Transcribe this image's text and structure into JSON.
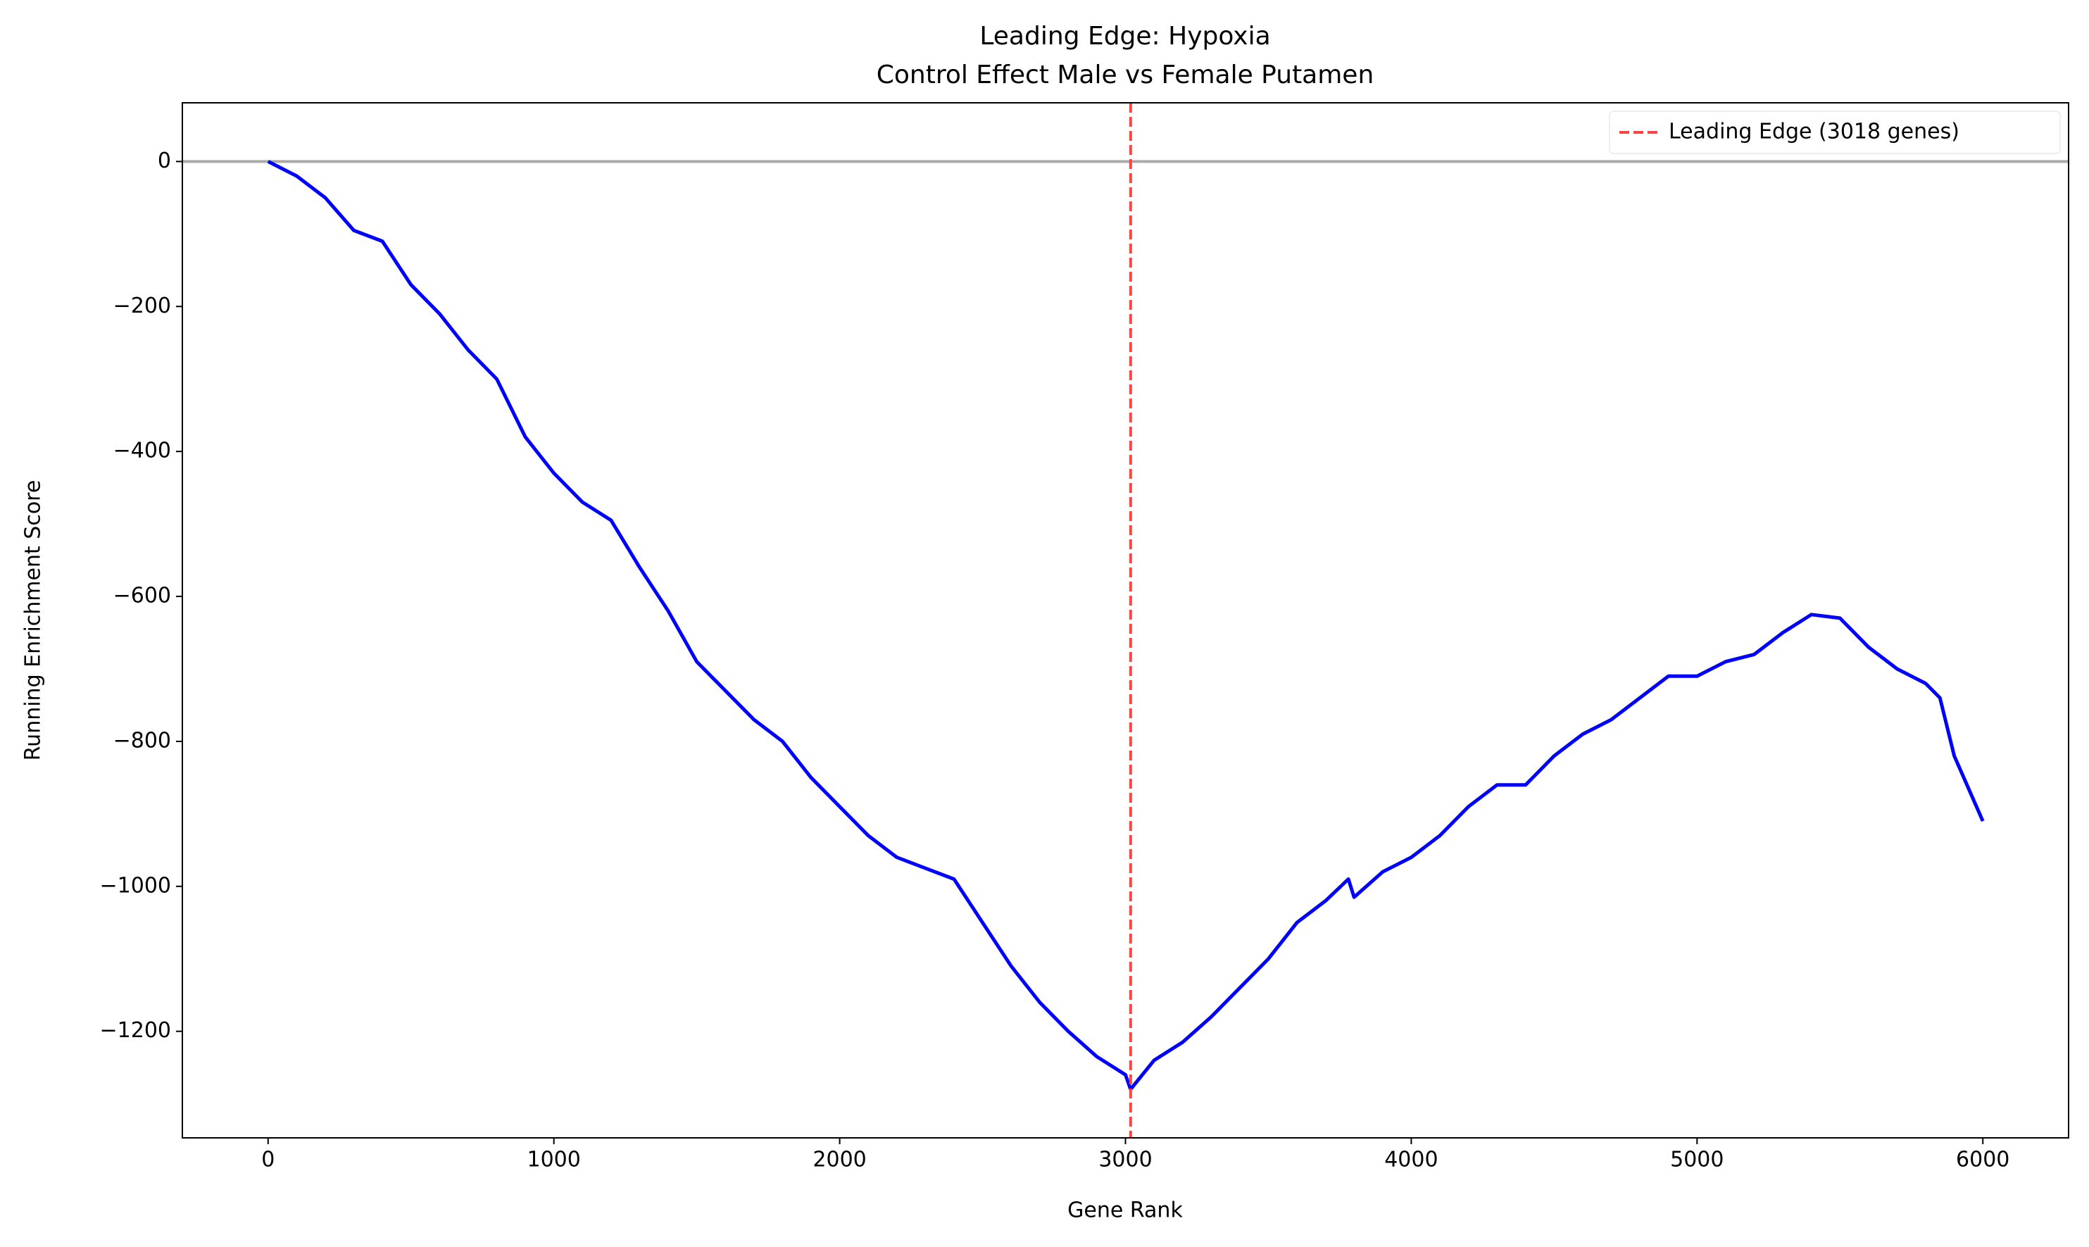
{
  "chart_data": {
    "type": "line",
    "title": "Leading Edge: Hypoxia",
    "subtitle": "Control Effect Male vs Female Putamen",
    "x_label": "Gene Rank",
    "y_label": "Running Enrichment Score",
    "x": [
      0,
      100,
      200,
      300,
      400,
      500,
      600,
      700,
      800,
      900,
      1000,
      1100,
      1200,
      1300,
      1400,
      1500,
      1600,
      1700,
      1800,
      1900,
      2000,
      2100,
      2200,
      2300,
      2400,
      2500,
      2600,
      2700,
      2800,
      2900,
      3000,
      3018,
      3100,
      3200,
      3300,
      3400,
      3500,
      3600,
      3700,
      3780,
      3800,
      3900,
      4000,
      4100,
      4200,
      4300,
      4400,
      4500,
      4600,
      4700,
      4800,
      4900,
      5000,
      5100,
      5200,
      5300,
      5400,
      5500,
      5600,
      5700,
      5800,
      5850,
      5900,
      6000
    ],
    "values": [
      0,
      -20,
      -50,
      -95,
      -110,
      -170,
      -210,
      -260,
      -300,
      -380,
      -430,
      -470,
      -495,
      -560,
      -620,
      -690,
      -730,
      -770,
      -800,
      -850,
      -890,
      -930,
      -960,
      -975,
      -990,
      -1050,
      -1110,
      -1160,
      -1200,
      -1235,
      -1260,
      -1280,
      -1240,
      -1215,
      -1180,
      -1140,
      -1100,
      -1050,
      -1020,
      -990,
      -1015,
      -980,
      -960,
      -930,
      -890,
      -860,
      -860,
      -820,
      -790,
      -770,
      -740,
      -710,
      -710,
      -690,
      -680,
      -650,
      -625,
      -630,
      -670,
      -700,
      -720,
      -740,
      -820,
      -910
    ],
    "color": "#0000ff",
    "hline": 0,
    "hline_color": "#aaaaaa",
    "vline": {
      "value": 3018,
      "label": "Leading Edge (3018 genes)",
      "color": "#ff4444"
    },
    "legend": "upper right",
    "grid": false,
    "xlim": [
      -300,
      6300
    ],
    "ylim": [
      -1347,
      81
    ],
    "xticks": [
      0,
      1000,
      2000,
      3000,
      4000,
      5000,
      6000
    ],
    "yticks": [
      {
        "value": -1200,
        "label": "−1200"
      },
      {
        "value": -1000,
        "label": "−1000"
      },
      {
        "value": -800,
        "label": "−800"
      },
      {
        "value": -600,
        "label": "−600"
      },
      {
        "value": -400,
        "label": "−400"
      },
      {
        "value": -200,
        "label": "−200"
      },
      0
    ]
  }
}
